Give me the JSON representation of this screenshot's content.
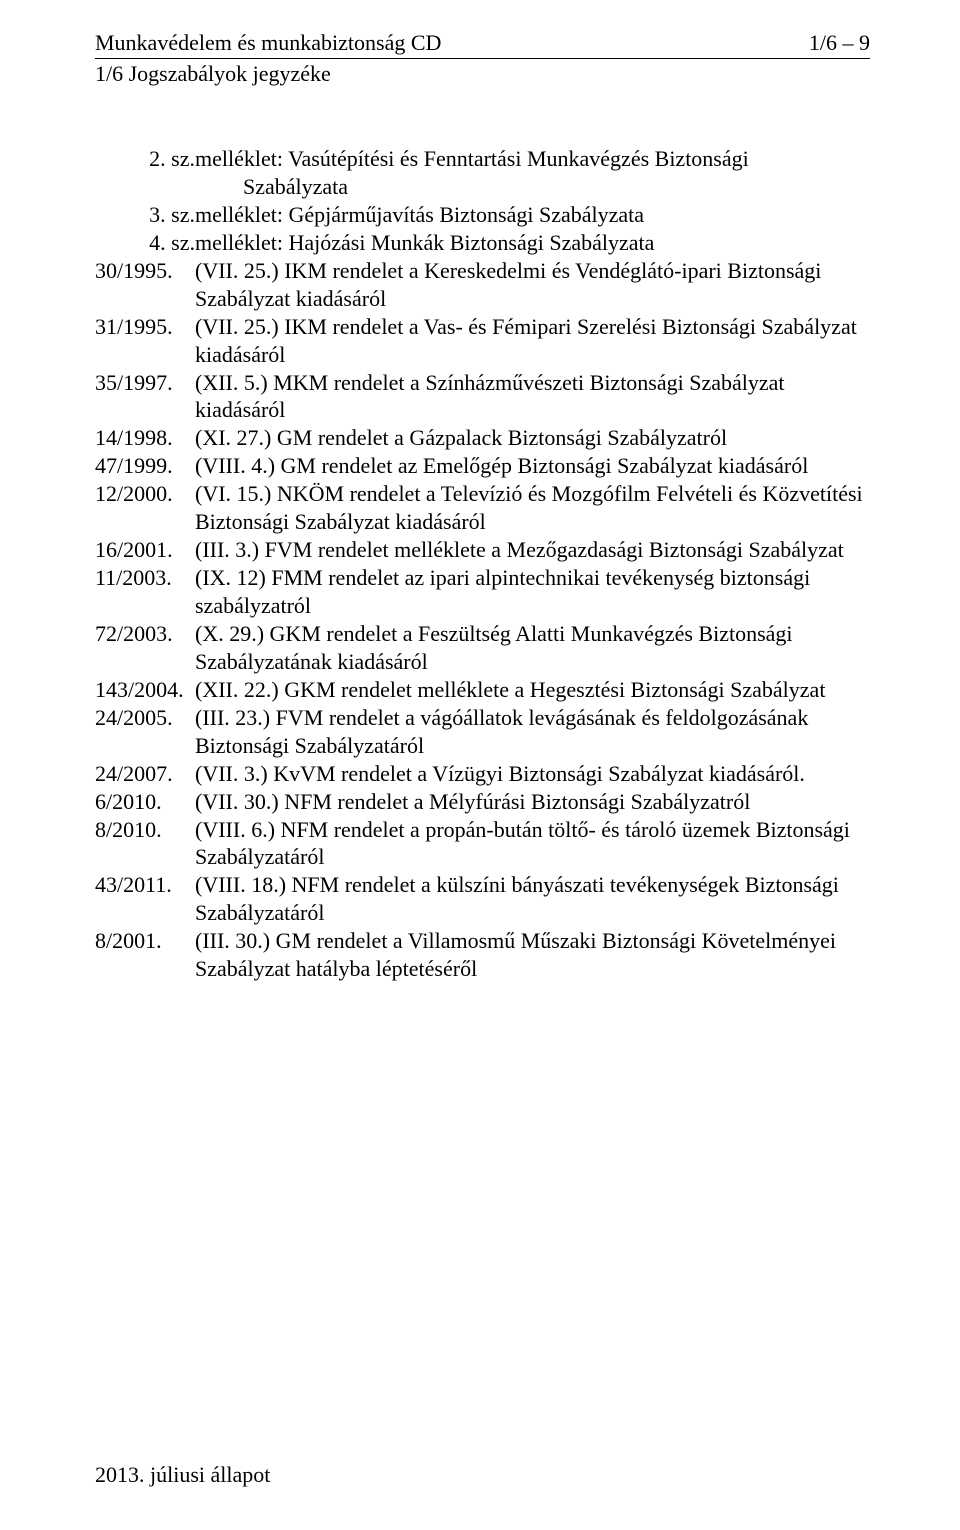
{
  "header": {
    "left": "Munkavédelem és munkabiztonság CD",
    "right": "1/6 – 9",
    "sub": "1/6 Jogszabályok jegyzéke"
  },
  "appendices": [
    {
      "num": "2. sz.",
      "line1": "melléklet: Vasútépítési és Fenntartási Munkavégzés Biztonsági",
      "line2": "Szabályzata"
    },
    {
      "num": "3. sz.",
      "line1": "melléklet: Gépjárműjavítás Biztonsági Szabályzata",
      "line2": ""
    },
    {
      "num": "4. sz.",
      "line1": "melléklet: Hajózási Munkák Biztonsági Szabályzata",
      "line2": ""
    }
  ],
  "entries": [
    {
      "ref": "30/1995.",
      "body": "(VII. 25.) IKM rendelet a Kereskedelmi és Vendéglátó-ipari Biztonsági Szabályzat kiadásáról"
    },
    {
      "ref": "31/1995.",
      "body": "(VII. 25.) IKM rendelet a Vas- és Fémipari Szerelési Biztonsági Szabályzat kiadásáról"
    },
    {
      "ref": "35/1997.",
      "body": "(XII. 5.) MKM rendelet a Színházművészeti Biztonsági Szabályzat kiadásáról"
    },
    {
      "ref": "14/1998.",
      "body": "(XI. 27.) GM rendelet a Gázpalack Biztonsági Szabályzatról"
    },
    {
      "ref": "47/1999.",
      "body": "(VIII. 4.) GM rendelet az Emelőgép Biztonsági Szabályzat kiadásáról"
    },
    {
      "ref": "12/2000.",
      "body": "(VI. 15.) NKÖM rendelet a Televízió és Mozgófilm Felvételi és Közvetítési Biztonsági Szabályzat kiadásáról"
    },
    {
      "ref": "16/2001.",
      "body": "(III. 3.) FVM rendelet melléklete a Mezőgazdasági Biztonsági Szabályzat"
    },
    {
      "ref": "11/2003.",
      "body": "(IX. 12) FMM rendelet az ipari alpintechnikai tevékenység biztonsági szabályzatról"
    },
    {
      "ref": "72/2003.",
      "body": "(X. 29.) GKM rendelet a Feszültség Alatti Munkavégzés Biztonsági Szabályzatának kiadásáról"
    },
    {
      "ref": "143/2004.",
      "body": "(XII. 22.) GKM rendelet melléklete a Hegesztési Biztonsági Szabályzat"
    },
    {
      "ref": "24/2005.",
      "body": "(III. 23.) FVM rendelet a vágóállatok levágásának és feldolgozásának Biztonsági Szabályzatáról"
    },
    {
      "ref": "24/2007.",
      "body": "(VII. 3.) KvVM rendelet a Vízügyi Biztonsági Szabályzat kiadásáról."
    },
    {
      "ref": "6/2010.",
      "body": "(VII. 30.) NFM rendelet a Mélyfúrási Biztonsági Szabályzatról"
    },
    {
      "ref": "8/2010.",
      "body": "(VIII. 6.) NFM rendelet a propán-bután töltő- és tároló üzemek Biztonsági Szabályzatáról"
    },
    {
      "ref": "43/2011.",
      "body": "(VIII. 18.) NFM rendelet a külszíni bányászati tevékenységek Biztonsági Szabályzatáról"
    },
    {
      "ref": "8/2001.",
      "body": "(III. 30.) GM rendelet a Villamosmű Műszaki Biztonsági Követelményei Szabályzat hatályba léptetéséről"
    }
  ],
  "footer": "2013. júliusi állapot"
}
